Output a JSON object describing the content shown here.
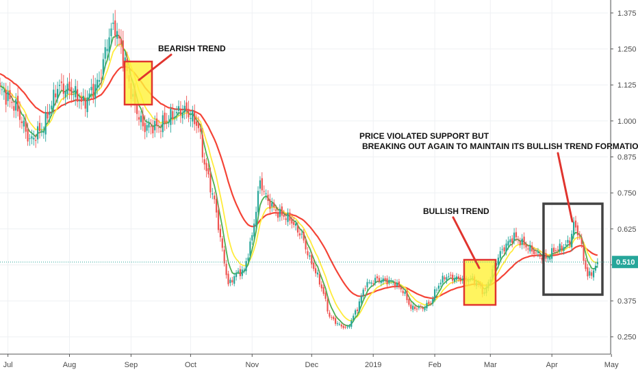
{
  "chart_data": {
    "type": "candlestick",
    "ylim": [
      0.19,
      1.42
    ],
    "grid": true,
    "y_ticks": [
      "1.375",
      "1.250",
      "1.125",
      "1.000",
      "0.875",
      "0.750",
      "0.625",
      "0.500",
      "0.375",
      "0.250"
    ],
    "y_tick_values": [
      1.375,
      1.25,
      1.125,
      1.0,
      0.875,
      0.75,
      0.625,
      0.5,
      0.375,
      0.25
    ],
    "x_ticks": [
      "Jul",
      "Aug",
      "Sep",
      "Oct",
      "Nov",
      "Dec",
      "2019",
      "Feb",
      "Mar",
      "Apr",
      "May"
    ],
    "x_tick_index": [
      4,
      35,
      66,
      96,
      127,
      157,
      188,
      219,
      247,
      278,
      308
    ],
    "last_price": {
      "label": "0.510",
      "value": 0.51
    },
    "series": [
      {
        "id": "ema_short",
        "color": "#4caf50",
        "period": 5
      },
      {
        "id": "ema_mid",
        "color": "#ffeb3b",
        "period": 10
      },
      {
        "id": "ema_long",
        "color": "#f44336",
        "period": 30
      }
    ],
    "up_color": "#26a69a",
    "down_color": "#ef5350",
    "keyframes": [
      [
        0,
        1.11
      ],
      [
        8,
        1.05
      ],
      [
        15,
        0.93
      ],
      [
        22,
        0.98
      ],
      [
        29,
        1.12
      ],
      [
        37,
        1.1
      ],
      [
        42,
        1.06
      ],
      [
        50,
        1.14
      ],
      [
        55,
        1.3
      ],
      [
        58,
        1.33
      ],
      [
        63,
        1.2
      ],
      [
        67,
        1.07
      ],
      [
        72,
        0.98
      ],
      [
        80,
        0.98
      ],
      [
        87,
        1.02
      ],
      [
        92,
        1.04
      ],
      [
        96,
        1.02
      ],
      [
        100,
        0.98
      ],
      [
        103,
        0.85
      ],
      [
        108,
        0.72
      ],
      [
        112,
        0.55
      ],
      [
        115,
        0.43
      ],
      [
        119,
        0.47
      ],
      [
        123,
        0.48
      ],
      [
        127,
        0.6
      ],
      [
        131,
        0.79
      ],
      [
        135,
        0.72
      ],
      [
        140,
        0.68
      ],
      [
        146,
        0.66
      ],
      [
        152,
        0.6
      ],
      [
        156,
        0.52
      ],
      [
        160,
        0.46
      ],
      [
        163,
        0.4
      ],
      [
        166,
        0.32
      ],
      [
        171,
        0.29
      ],
      [
        175,
        0.28
      ],
      [
        180,
        0.35
      ],
      [
        184,
        0.43
      ],
      [
        190,
        0.45
      ],
      [
        198,
        0.44
      ],
      [
        203,
        0.41
      ],
      [
        207,
        0.35
      ],
      [
        213,
        0.35
      ],
      [
        217,
        0.37
      ],
      [
        220,
        0.42
      ],
      [
        224,
        0.46
      ],
      [
        232,
        0.45
      ],
      [
        238,
        0.45
      ],
      [
        241,
        0.43
      ],
      [
        244,
        0.4
      ],
      [
        247,
        0.46
      ],
      [
        251,
        0.53
      ],
      [
        255,
        0.57
      ],
      [
        259,
        0.6
      ],
      [
        264,
        0.57
      ],
      [
        270,
        0.54
      ],
      [
        275,
        0.52
      ],
      [
        279,
        0.55
      ],
      [
        283,
        0.56
      ],
      [
        287,
        0.58
      ],
      [
        289,
        0.64
      ],
      [
        292,
        0.6
      ],
      [
        294,
        0.52
      ],
      [
        296,
        0.46
      ],
      [
        299,
        0.48
      ],
      [
        301,
        0.51
      ]
    ],
    "annotations": [
      {
        "id": "bearish",
        "text": "BEARISH TREND"
      },
      {
        "id": "violated_1",
        "text": "PRICE VIOLATED SUPPORT BUT"
      },
      {
        "id": "violated_2",
        "text": "BREAKING OUT AGAIN TO MAINTAIN ITS BULLISH TREND FORMATION"
      },
      {
        "id": "bullish",
        "text": "BULLISH TREND"
      }
    ]
  }
}
